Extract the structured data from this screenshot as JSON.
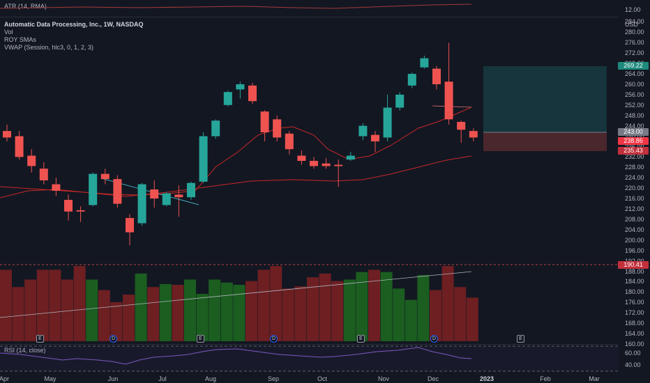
{
  "atr": {
    "label": "ATR (14, RMA)",
    "value": "12.00"
  },
  "legend": {
    "title": "Automatic Data Processing, Inc., 1W, NASDAQ",
    "vol": "Vol",
    "sma": "ROY SMAs",
    "vwap": "VWAP (Session, hlc3, 0, 1, 2, 3)"
  },
  "currency": "USD",
  "price_ticks": [
    "284.00",
    "280.00",
    "276.00",
    "272.00",
    "268.00",
    "264.00",
    "260.00",
    "256.00",
    "252.00",
    "248.00",
    "244.00",
    "240.00",
    "236.00",
    "232.00",
    "228.00",
    "224.00",
    "220.00",
    "216.00",
    "212.00",
    "208.00",
    "204.00",
    "200.00",
    "196.00",
    "192.00",
    "188.00",
    "184.00",
    "180.00",
    "176.00",
    "172.00",
    "168.00",
    "164.00",
    "160.00"
  ],
  "tags": {
    "target": "269.22",
    "entry": "243.00",
    "current": "238.86",
    "stop": "235.43",
    "volume": "190.41"
  },
  "rsi": {
    "label": "RSI (14, close)",
    "ticks": [
      "60.00",
      "40.00"
    ]
  },
  "x_ticks": [
    "Apr",
    "May",
    "Jun",
    "Jul",
    "Aug",
    "Sep",
    "Oct",
    "Nov",
    "Dec",
    "2023",
    "Feb",
    "Mar"
  ],
  "earnings_badge": "E",
  "dividend_badge": "D",
  "colors": {
    "up": "#26a69a",
    "down": "#ef5350",
    "vol_up": "#1b5e20",
    "vol_down": "#6d1f22",
    "background": "#131722"
  },
  "chart_data": {
    "type": "candlestick",
    "title": "Automatic Data Processing, Inc., 1W, NASDAQ",
    "y_unit": "USD",
    "ylim": [
      160,
      286
    ],
    "candles": [
      {
        "o": 242.0,
        "h": 244.5,
        "l": 238.0,
        "c": 239.5
      },
      {
        "o": 240.0,
        "h": 242.0,
        "l": 231.0,
        "c": 232.0
      },
      {
        "o": 232.5,
        "h": 235.0,
        "l": 226.0,
        "c": 228.5
      },
      {
        "o": 227.5,
        "h": 230.0,
        "l": 221.5,
        "c": 223.0
      },
      {
        "o": 221.5,
        "h": 224.0,
        "l": 217.0,
        "c": 219.0
      },
      {
        "o": 215.5,
        "h": 217.5,
        "l": 207.5,
        "c": 211.0
      },
      {
        "o": 211.5,
        "h": 213.0,
        "l": 207.0,
        "c": 211.0
      },
      {
        "o": 213.5,
        "h": 226.0,
        "l": 213.0,
        "c": 225.5
      },
      {
        "o": 225.5,
        "h": 227.5,
        "l": 221.5,
        "c": 223.5
      },
      {
        "o": 223.5,
        "h": 225.0,
        "l": 212.5,
        "c": 214.0
      },
      {
        "o": 208.5,
        "h": 210.0,
        "l": 198.0,
        "c": 203.0
      },
      {
        "o": 206.5,
        "h": 222.0,
        "l": 205.5,
        "c": 221.5
      },
      {
        "o": 219.5,
        "h": 223.0,
        "l": 212.5,
        "c": 216.0
      },
      {
        "o": 213.5,
        "h": 218.5,
        "l": 213.0,
        "c": 218.0
      },
      {
        "o": 217.5,
        "h": 221.0,
        "l": 209.0,
        "c": 216.5
      },
      {
        "o": 216.5,
        "h": 222.5,
        "l": 215.5,
        "c": 222.0
      },
      {
        "o": 222.5,
        "h": 241.5,
        "l": 222.0,
        "c": 240.0
      },
      {
        "o": 240.0,
        "h": 246.5,
        "l": 239.0,
        "c": 246.0
      },
      {
        "o": 252.0,
        "h": 257.5,
        "l": 251.5,
        "c": 257.0
      },
      {
        "o": 258.0,
        "h": 261.0,
        "l": 254.5,
        "c": 260.0
      },
      {
        "o": 259.5,
        "h": 260.5,
        "l": 252.5,
        "c": 253.5
      },
      {
        "o": 249.5,
        "h": 250.0,
        "l": 238.0,
        "c": 241.5
      },
      {
        "o": 246.5,
        "h": 248.0,
        "l": 238.0,
        "c": 239.5
      },
      {
        "o": 241.0,
        "h": 242.0,
        "l": 233.0,
        "c": 235.0
      },
      {
        "o": 232.5,
        "h": 234.5,
        "l": 229.0,
        "c": 230.5
      },
      {
        "o": 230.5,
        "h": 232.0,
        "l": 227.5,
        "c": 228.5
      },
      {
        "o": 229.5,
        "h": 231.5,
        "l": 227.5,
        "c": 228.5
      },
      {
        "o": 229.0,
        "h": 231.0,
        "l": 220.5,
        "c": 228.5
      },
      {
        "o": 231.0,
        "h": 234.0,
        "l": 230.5,
        "c": 232.5
      },
      {
        "o": 240.0,
        "h": 245.0,
        "l": 238.5,
        "c": 244.0
      },
      {
        "o": 240.5,
        "h": 242.0,
        "l": 234.0,
        "c": 238.0
      },
      {
        "o": 239.5,
        "h": 256.0,
        "l": 238.0,
        "c": 251.0
      },
      {
        "o": 251.0,
        "h": 257.0,
        "l": 250.0,
        "c": 256.0
      },
      {
        "o": 259.5,
        "h": 264.5,
        "l": 258.5,
        "c": 264.0
      },
      {
        "o": 266.5,
        "h": 271.0,
        "l": 266.0,
        "c": 270.0
      },
      {
        "o": 266.0,
        "h": 267.0,
        "l": 258.0,
        "c": 260.0
      },
      {
        "o": 261.0,
        "h": 276.0,
        "l": 244.5,
        "c": 246.5
      },
      {
        "o": 245.5,
        "h": 246.0,
        "l": 237.5,
        "c": 242.5
      },
      {
        "o": 242.0,
        "h": 243.0,
        "l": 238.0,
        "c": 239.5
      }
    ],
    "volume_relative": [
      0.95,
      0.72,
      0.82,
      0.95,
      0.95,
      0.82,
      1.0,
      0.82,
      0.68,
      0.52,
      0.62,
      0.9,
      0.72,
      0.76,
      0.75,
      0.82,
      0.63,
      0.82,
      0.78,
      0.75,
      0.8,
      0.95,
      1.0,
      0.7,
      0.73,
      0.85,
      0.9,
      0.8,
      0.82,
      0.92,
      0.95,
      0.92,
      0.7,
      0.55,
      0.88,
      0.68,
      1.0,
      0.72,
      0.58
    ]
  }
}
